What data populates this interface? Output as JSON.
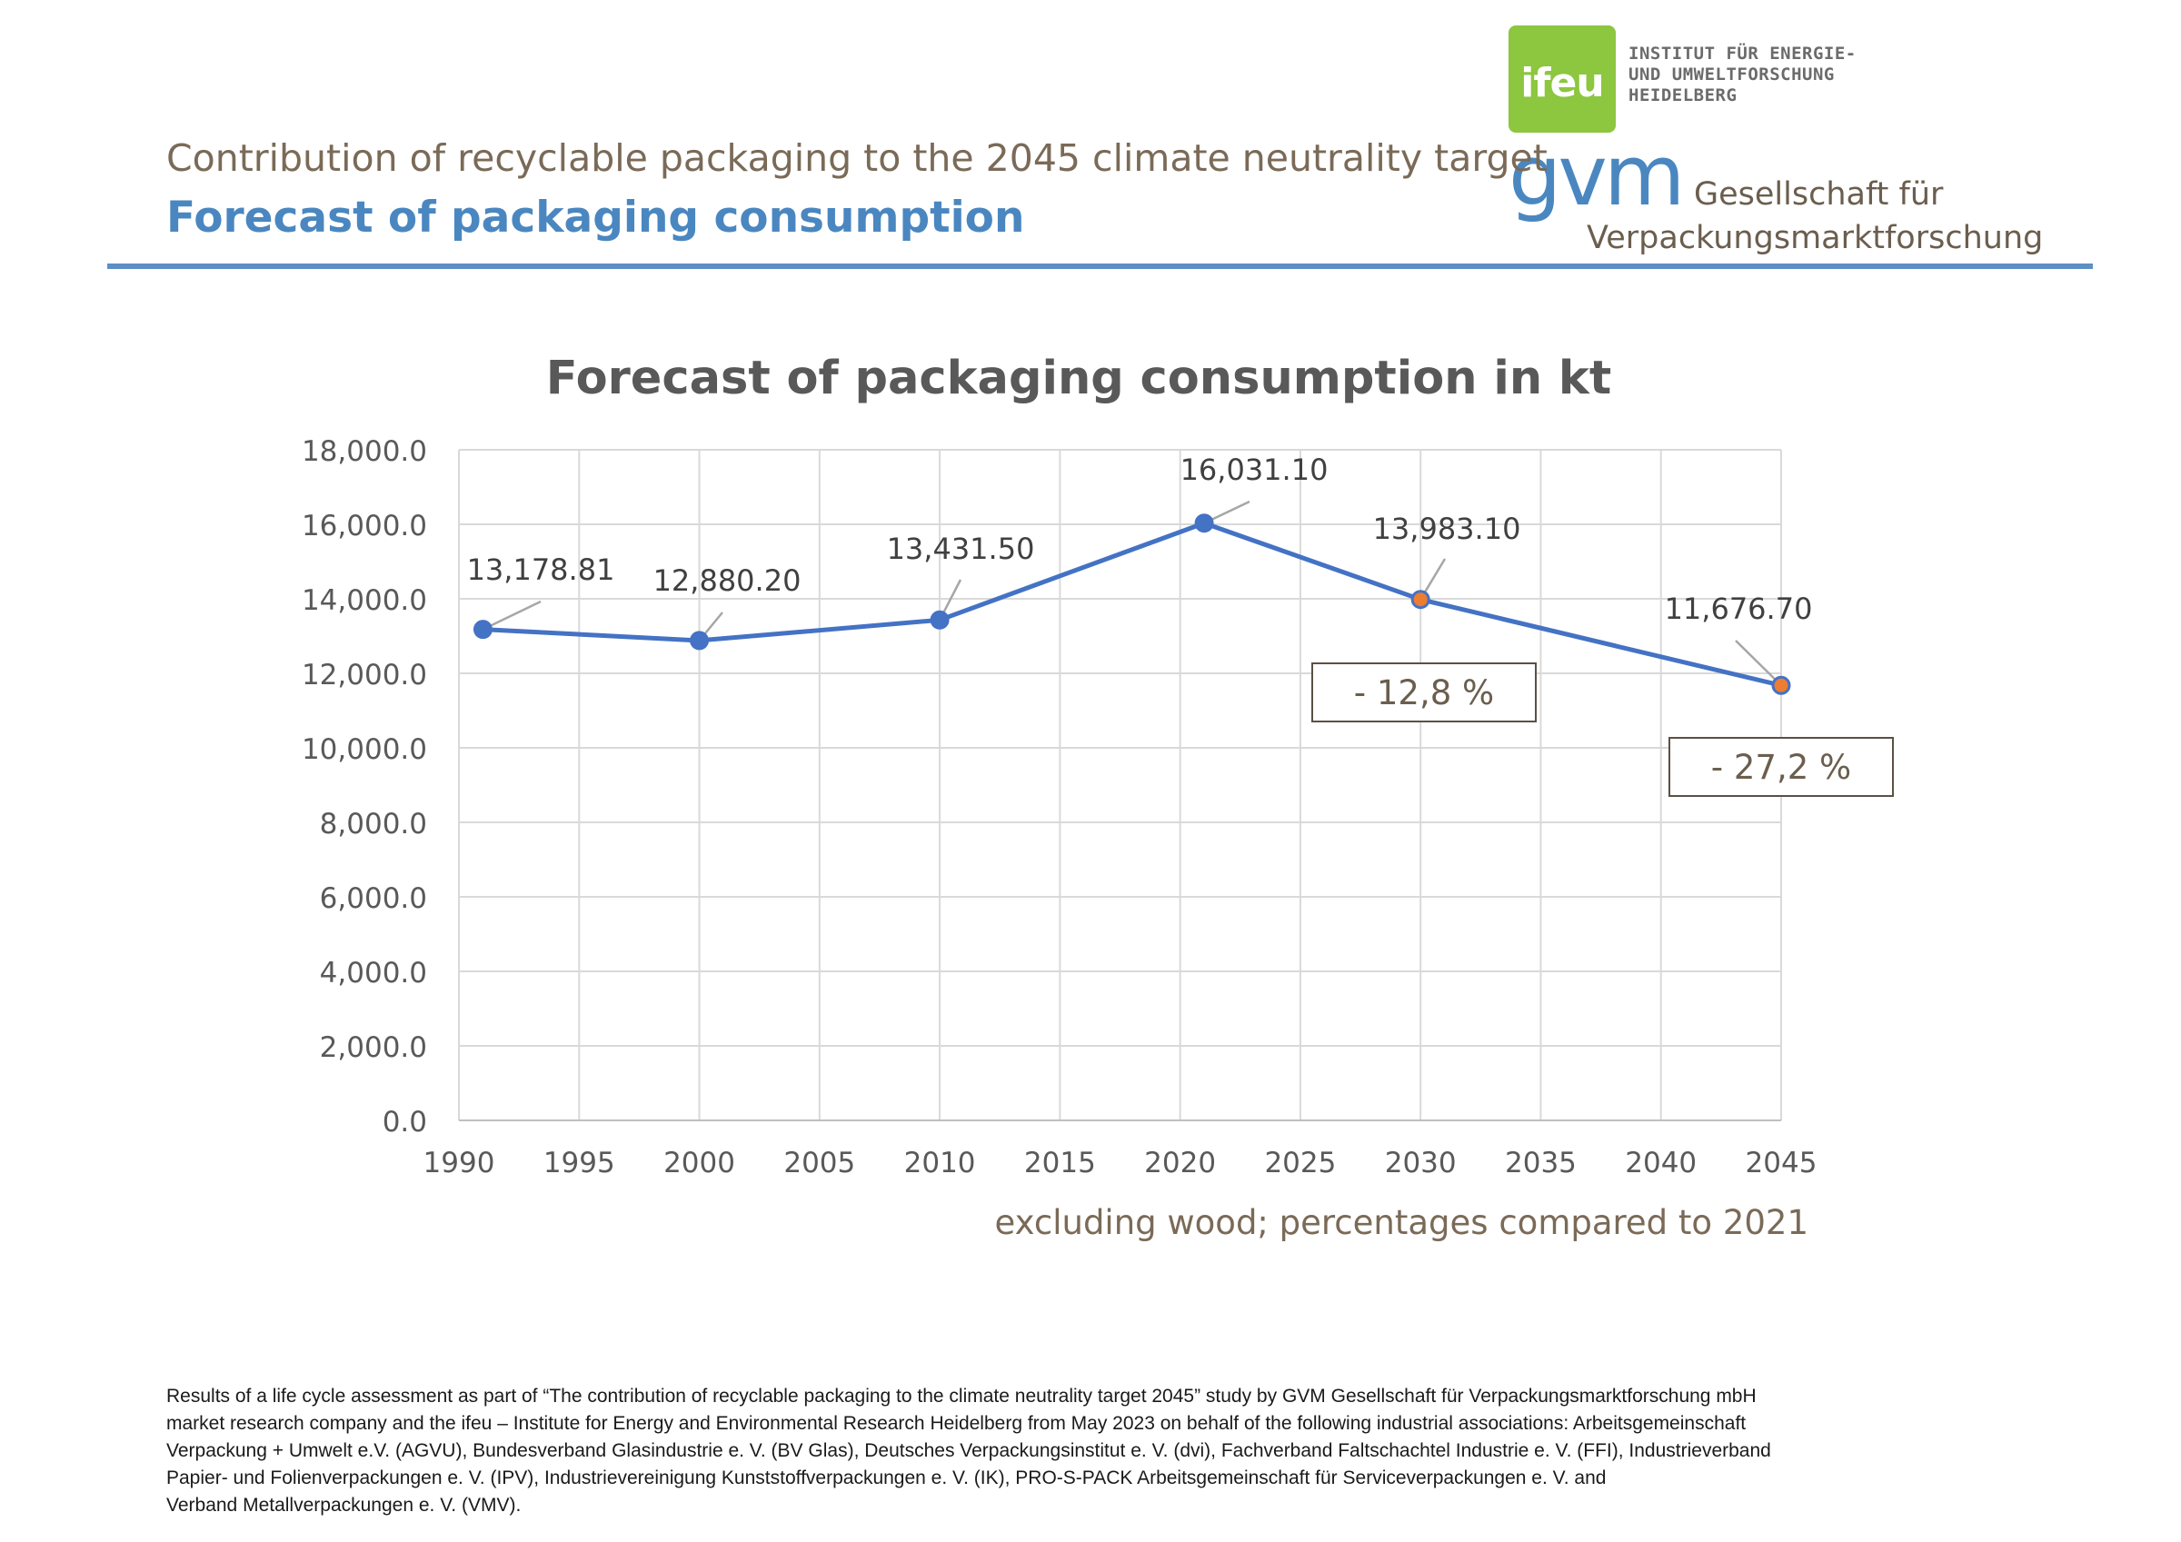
{
  "header": {
    "subtitle": "Contribution of recyclable packaging to the 2045 climate neutrality target",
    "title": "Forecast of packaging consumption"
  },
  "logos": {
    "ifeu": {
      "mark": "ifeu",
      "text_lines": [
        "INSTITUT FÜR ENERGIE-",
        "UND UMWELTFORSCHUNG",
        "HEIDELBERG"
      ],
      "color": "#8dc63f"
    },
    "gvm": {
      "mark": "gvm",
      "text_line1": "Gesellschaft für",
      "text_line2": "Verpackungsmarktforschung",
      "color": "#4a87c0"
    }
  },
  "chart_data": {
    "type": "line",
    "title": "Forecast of packaging consumption in kt",
    "xlim": [
      1990,
      2045
    ],
    "x_ticks": [
      1990,
      1995,
      2000,
      2005,
      2010,
      2015,
      2020,
      2025,
      2030,
      2035,
      2040,
      2045
    ],
    "ylim": [
      0,
      18000
    ],
    "y_ticks": [
      0,
      2000,
      4000,
      6000,
      8000,
      10000,
      12000,
      14000,
      16000,
      18000
    ],
    "y_tick_labels": [
      "0.0",
      "2,000.0",
      "4,000.0",
      "6,000.0",
      "8,000.0",
      "10,000.0",
      "12,000.0",
      "14,000.0",
      "16,000.0",
      "18,000.0"
    ],
    "grid": true,
    "series": [
      {
        "color": "#4472c4",
        "points": [
          {
            "x": 1991,
            "y": 13178.81,
            "label": "13,178.81",
            "forecast": false
          },
          {
            "x": 2000,
            "y": 12880.2,
            "label": "12,880.20",
            "forecast": false
          },
          {
            "x": 2010,
            "y": 13431.5,
            "label": "13,431.50",
            "forecast": false
          },
          {
            "x": 2021,
            "y": 16031.1,
            "label": "16,031.10",
            "forecast": false
          },
          {
            "x": 2030,
            "y": 13983.1,
            "label": "13,983.10",
            "forecast": true
          },
          {
            "x": 2045,
            "y": 11676.7,
            "label": "11,676.70",
            "forecast": true
          }
        ]
      }
    ],
    "forecast_marker_color": "#ed7d31",
    "annotations": [
      {
        "text": "- 12,8 %",
        "x": 2030
      },
      {
        "text": "- 27,2 %",
        "x": 2045
      }
    ],
    "note": "excluding wood; percentages compared to 2021"
  },
  "footer": {
    "lines": [
      "Results of a life cycle assessment as part of “The contribution of recyclable packaging to the climate neutrality target 2045” study by GVM Gesellschaft für Verpackungsmarktforschung mbH",
      "market research company and the ifeu – Institute for Energy and Environmental Research Heidelberg from May 2023 on behalf of the following industrial associations: Arbeitsgemeinschaft",
      "Verpackung + Umwelt e.V. (AGVU), Bundesverband Glasindustrie e. V. (BV Glas), Deutsches Verpackungsinstitut e. V. (dvi), Fachverband Faltschachtel Industrie e. V. (FFI), Industrieverband",
      "Papier- und Folienverpackungen e. V. (IPV), Industrievereinigung Kunststoffverpackungen e. V. (IK), PRO-S-PACK Arbeitsgemeinschaft für Serviceverpackungen e. V. and",
      "Verband Metallverpackungen e. V. (VMV)."
    ]
  }
}
